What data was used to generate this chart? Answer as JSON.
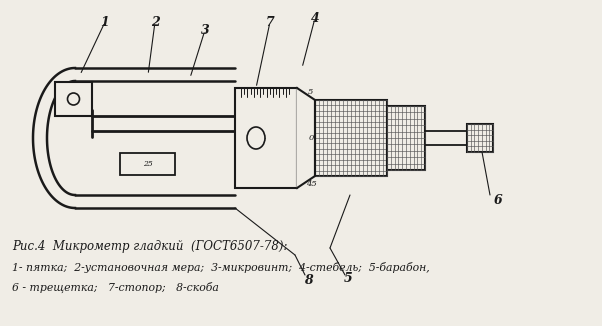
{
  "background_color": "#f0ede6",
  "line_color": "#1a1a1a",
  "title_line1": "Рис.4  Микрометр гладкий  (ГОСТ6507-78):",
  "title_line2": "1- пятка;  2-установочная мера;  3-микровинт;  4-стебель;  5-барабон,",
  "title_line3": "6 - трещетка;   7-стопор;   8-скоба",
  "fig_width": 6.02,
  "fig_height": 3.26,
  "dpi": 100
}
